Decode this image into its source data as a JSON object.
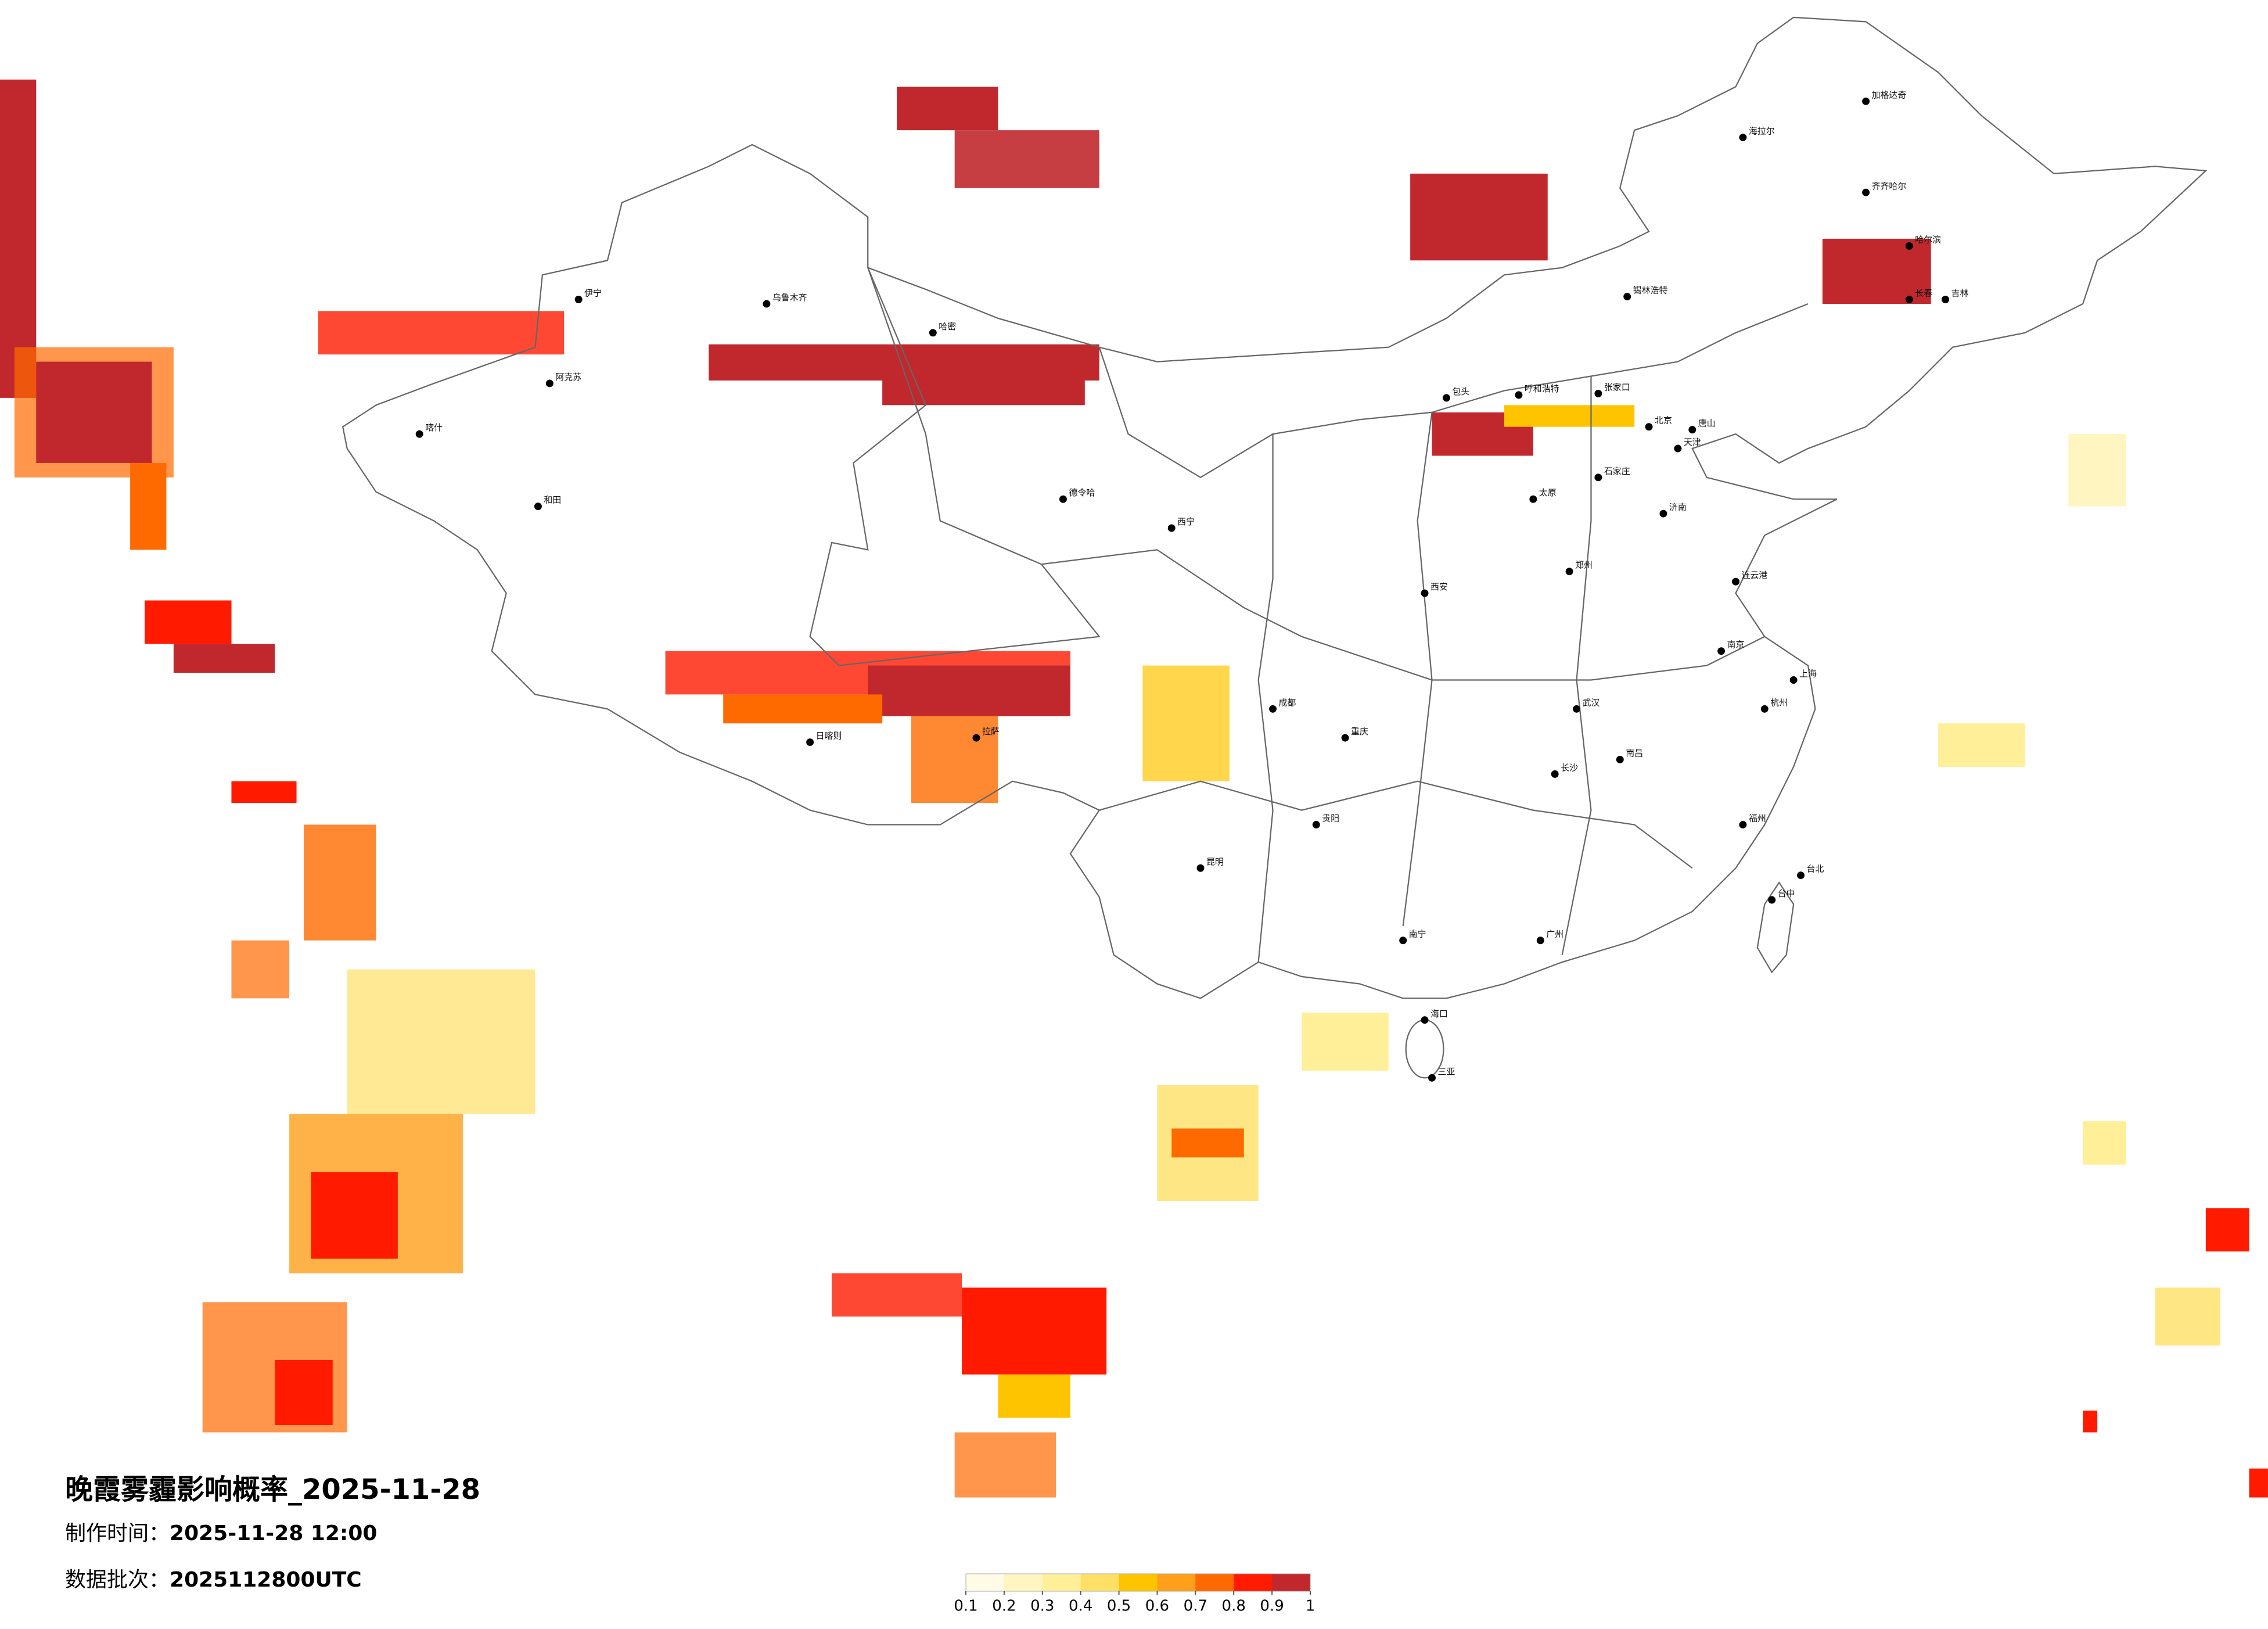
{
  "header": {
    "title": "晚霞雾霾影响概率_2025-11-28",
    "made_label": "制作时间：",
    "made_time": "2025-11-28 12:00",
    "batch_label": "数据批次：",
    "batch": "2025112800UTC"
  },
  "legend": {
    "colors": [
      "#fffbe6",
      "#fff5c0",
      "#ffef99",
      "#ffe066",
      "#ffc400",
      "#ff9f1a",
      "#ff6a00",
      "#ff1a00",
      "#c0282d"
    ],
    "ticks": [
      0.1,
      0.2,
      0.3,
      0.4,
      0.5,
      0.6,
      0.7,
      0.8,
      0.9,
      1
    ]
  },
  "cities": [
    "北京",
    "天津",
    "石家庄",
    "济南",
    "郑州",
    "太原",
    "呼和浩特",
    "包头",
    "哈尔滨",
    "长春",
    "吉林",
    "海拉尔",
    "加格达奇",
    "齐齐哈尔",
    "乌鲁木齐",
    "喀什",
    "和田",
    "伊宁",
    "哈密",
    "阿克苏",
    "德令哈",
    "西宁",
    "拉萨",
    "日喀则",
    "成都",
    "重庆",
    "贵阳",
    "昆明",
    "南宁",
    "广州",
    "海口",
    "三亚",
    "长沙",
    "南昌",
    "武汉",
    "杭州",
    "上海",
    "南京",
    "福州",
    "台北",
    "台中",
    "连云港",
    "唐山",
    "张家口",
    "锡林浩特",
    "西安"
  ]
}
